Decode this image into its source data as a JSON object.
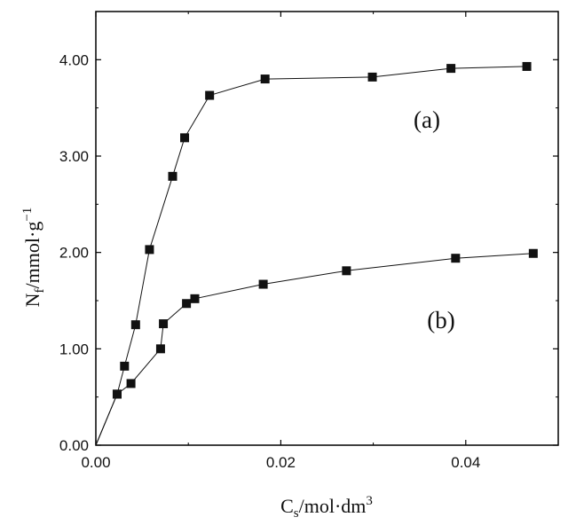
{
  "chart_data": {
    "type": "scatter",
    "xlabel": {
      "base": "C",
      "sub": "s",
      "rest": "/mol·dm",
      "sup": "3"
    },
    "ylabel": {
      "base": "N",
      "sub": "f",
      "rest": "/mmol·g",
      "sup": "−1"
    },
    "xlim": [
      0,
      0.05
    ],
    "ylim": [
      0,
      4.5
    ],
    "xticks": [
      0.0,
      0.02,
      0.04
    ],
    "xtick_labels": [
      "0.00",
      "0.02",
      "0.04"
    ],
    "yticks": [
      0.0,
      1.0,
      2.0,
      3.0,
      4.0
    ],
    "ytick_labels": [
      "0.00",
      "1.00",
      "2.00",
      "3.00",
      "4.00"
    ],
    "grid": false,
    "series": [
      {
        "name": "(a)",
        "x": [
          0.0,
          0.0023,
          0.0031,
          0.0043,
          0.0058,
          0.0083,
          0.0096,
          0.0123,
          0.0183,
          0.0299,
          0.0384,
          0.0466
        ],
        "y": [
          0.0,
          0.53,
          0.82,
          1.25,
          2.03,
          2.79,
          3.19,
          3.63,
          3.8,
          3.82,
          3.91,
          3.93
        ]
      },
      {
        "name": "(b)",
        "x": [
          0.0,
          0.0023,
          0.0038,
          0.007,
          0.0073,
          0.0098,
          0.0107,
          0.0181,
          0.0271,
          0.0389,
          0.0473
        ],
        "y": [
          0.0,
          0.53,
          0.64,
          1.0,
          1.26,
          1.47,
          1.52,
          1.67,
          1.81,
          1.94,
          1.99
        ]
      }
    ],
    "annotations": [
      "(a)",
      "(b)"
    ]
  }
}
